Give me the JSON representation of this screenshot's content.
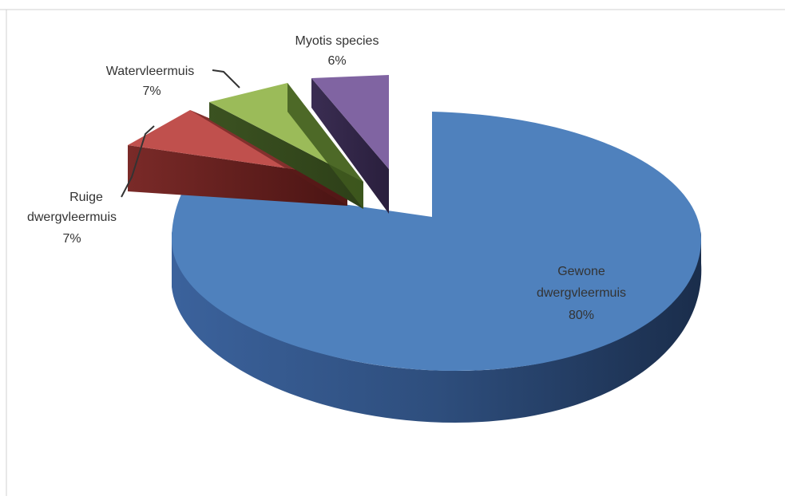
{
  "chart_data": {
    "type": "pie",
    "style": "3d-exploded",
    "slices": [
      {
        "name": "Gewone dwergvleermuis",
        "label_lines": [
          "Gewone",
          "dwergvleermuis"
        ],
        "value": 80,
        "value_label": "80%",
        "color": "#4f81bd"
      },
      {
        "name": "Ruige dwergvleermuis",
        "label_lines": [
          "Ruige",
          "dwergvleermuis"
        ],
        "value": 7,
        "value_label": "7%",
        "color": "#c0504d"
      },
      {
        "name": "Watervleermuis",
        "label_lines": [
          "Watervleermuis"
        ],
        "value": 7,
        "value_label": "7%",
        "color": "#9bbb59"
      },
      {
        "name": "Myotis species",
        "label_lines": [
          "Myotis species"
        ],
        "value": 6,
        "value_label": "6%",
        "color": "#8064a2"
      }
    ]
  }
}
